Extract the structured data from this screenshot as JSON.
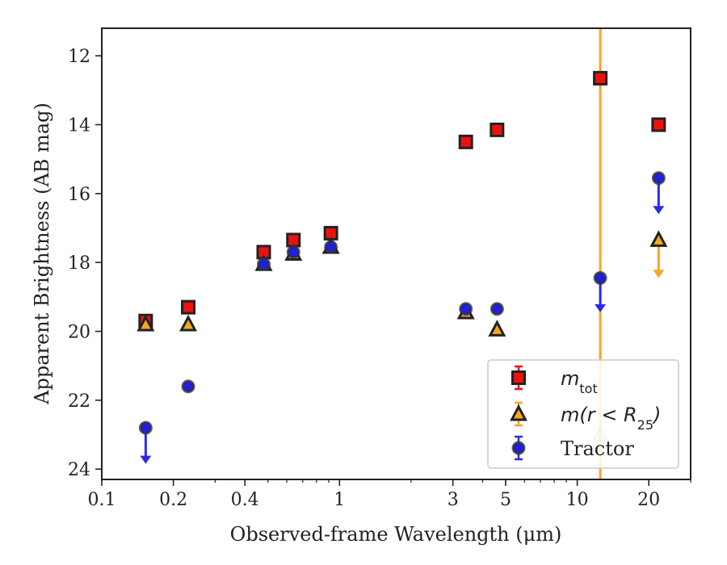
{
  "chart_data": {
    "type": "scatter",
    "xlabel": "Observed-frame Wavelength (μm)",
    "ylabel": "Apparent Brightness (AB mag)",
    "x_scale": "log",
    "y_inverted": true,
    "xlim": [
      0.1,
      30
    ],
    "ylim": [
      24.3,
      11.2
    ],
    "x_ticks": [
      0.1,
      0.2,
      0.4,
      1,
      3,
      5,
      10,
      20
    ],
    "x_tick_labels": [
      "0.1",
      "0.2",
      "0.4",
      "1",
      "3",
      "5",
      "10",
      "20"
    ],
    "y_ticks": [
      12,
      14,
      16,
      18,
      20,
      22,
      24
    ],
    "y_tick_labels": [
      "12",
      "14",
      "16",
      "18",
      "20",
      "22",
      "24"
    ],
    "grid": false,
    "legend_position": "lower-right",
    "vertical_line": {
      "x": 12.5,
      "color": "#f5a623"
    },
    "series": [
      {
        "name": "m_tot",
        "legend_main": "m",
        "legend_sub": "tot",
        "marker": "square",
        "color": "#ee1111",
        "edge": "#222222",
        "points": [
          {
            "x": 0.153,
            "y": 19.7
          },
          {
            "x": 0.231,
            "y": 19.3
          },
          {
            "x": 0.48,
            "y": 17.7
          },
          {
            "x": 0.64,
            "y": 17.35
          },
          {
            "x": 0.92,
            "y": 17.15
          },
          {
            "x": 3.4,
            "y": 14.5
          },
          {
            "x": 4.6,
            "y": 14.15
          },
          {
            "x": 12.5,
            "y": 12.65
          },
          {
            "x": 22.0,
            "y": 14.0
          }
        ]
      },
      {
        "name": "m(r < R25)",
        "legend_main": "m(r < R",
        "legend_sub": "25",
        "legend_tail": ")",
        "marker": "triangle",
        "color": "#f5a623",
        "edge": "#222222",
        "points": [
          {
            "x": 0.153,
            "y": 19.8
          },
          {
            "x": 0.231,
            "y": 19.8
          },
          {
            "x": 0.48,
            "y": 18.05
          },
          {
            "x": 0.64,
            "y": 17.75
          },
          {
            "x": 0.92,
            "y": 17.55
          },
          {
            "x": 3.4,
            "y": 19.45
          },
          {
            "x": 4.6,
            "y": 19.95
          },
          {
            "x": 12.5,
            "y": 23.0,
            "faint": true
          },
          {
            "x": 22.0,
            "y": 17.35,
            "upper_limit": true,
            "limit_to": 18.4
          }
        ]
      },
      {
        "name": "Tractor",
        "marker": "circle",
        "color": "#1f1fdd",
        "edge": "#333333",
        "points": [
          {
            "x": 0.153,
            "y": 22.8,
            "upper_limit": true,
            "limit_to": 23.8
          },
          {
            "x": 0.231,
            "y": 21.6
          },
          {
            "x": 0.48,
            "y": 18.05
          },
          {
            "x": 0.64,
            "y": 17.7
          },
          {
            "x": 0.92,
            "y": 17.55
          },
          {
            "x": 3.4,
            "y": 19.35
          },
          {
            "x": 4.6,
            "y": 19.35
          },
          {
            "x": 12.5,
            "y": 18.45,
            "upper_limit": true,
            "limit_to": 19.4
          },
          {
            "x": 22.0,
            "y": 15.55,
            "upper_limit": true,
            "limit_to": 16.55
          }
        ]
      }
    ]
  }
}
